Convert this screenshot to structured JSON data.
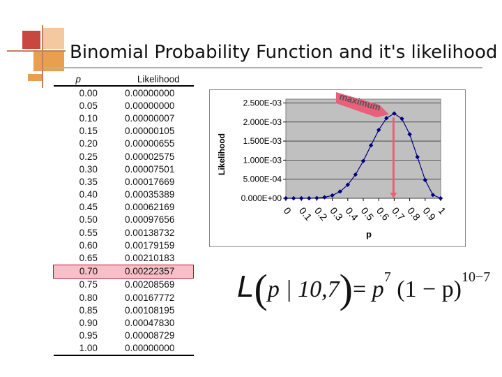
{
  "title": "Binomial Probability Function and it's likelihood",
  "table": {
    "headers": {
      "p": "p",
      "likelihood": "Likelihood"
    },
    "rows": [
      {
        "p": "0.00",
        "l": "0.00000000"
      },
      {
        "p": "0.05",
        "l": "0.00000000"
      },
      {
        "p": "0.10",
        "l": "0.00000007"
      },
      {
        "p": "0.15",
        "l": "0.00000105"
      },
      {
        "p": "0.20",
        "l": "0.00000655"
      },
      {
        "p": "0.25",
        "l": "0.00002575"
      },
      {
        "p": "0.30",
        "l": "0.00007501"
      },
      {
        "p": "0.35",
        "l": "0.00017669"
      },
      {
        "p": "0.40",
        "l": "0.00035389"
      },
      {
        "p": "0.45",
        "l": "0.00062169"
      },
      {
        "p": "0.50",
        "l": "0.00097656"
      },
      {
        "p": "0.55",
        "l": "0.00138732"
      },
      {
        "p": "0.60",
        "l": "0.00179159"
      },
      {
        "p": "0.65",
        "l": "0.00210183"
      },
      {
        "p": "0.70",
        "l": "0.00222357"
      },
      {
        "p": "0.75",
        "l": "0.00208569"
      },
      {
        "p": "0.80",
        "l": "0.00167772"
      },
      {
        "p": "0.85",
        "l": "0.00108195"
      },
      {
        "p": "0.90",
        "l": "0.00047830"
      },
      {
        "p": "0.95",
        "l": "0.00008729"
      },
      {
        "p": "1.00",
        "l": "0.00000000"
      }
    ],
    "highlight_index": 14,
    "highlight_color": "#f6c0c8"
  },
  "chart_data": {
    "type": "line",
    "title": "",
    "xlabel": "p",
    "ylabel": "Likelihood",
    "x": [
      0,
      0.05,
      0.1,
      0.15,
      0.2,
      0.25,
      0.3,
      0.35,
      0.4,
      0.45,
      0.5,
      0.55,
      0.6,
      0.65,
      0.7,
      0.75,
      0.8,
      0.85,
      0.9,
      0.95,
      1
    ],
    "series": [
      {
        "values": [
          0,
          0,
          7e-08,
          1.05e-06,
          6.55e-06,
          2.575e-05,
          7.501e-05,
          0.00017669,
          0.00035389,
          0.00062169,
          0.00097656,
          0.00138732,
          0.00179159,
          0.00210183,
          0.00222357,
          0.00208569,
          0.00167772,
          0.00108195,
          0.0004783,
          8.729e-05,
          0
        ],
        "color": "#000080"
      }
    ],
    "x_tick_labels": [
      "0",
      "0.1",
      "0.2",
      "0.3",
      "0.4",
      "0.5",
      "0.6",
      "0.7",
      "0.8",
      "0.9",
      "1"
    ],
    "x_tick_values": [
      0,
      0.1,
      0.2,
      0.3,
      0.4,
      0.5,
      0.6,
      0.7,
      0.8,
      0.9,
      1
    ],
    "y_tick_labels": [
      "0.000E+00",
      "5.000E-04",
      "1.000E-03",
      "1.500E-03",
      "2.000E-03",
      "2.500E-03"
    ],
    "y_tick_values": [
      0,
      0.0005,
      0.001,
      0.0015,
      0.002,
      0.0025
    ],
    "ylim": [
      0,
      0.0026
    ],
    "xlim": [
      0,
      1
    ],
    "grid": true,
    "plot_background": "#c0c0c0",
    "annotation": {
      "text": "maximum",
      "x": 0.7,
      "color": "#e8607a"
    }
  },
  "formula": {
    "lhs": "L",
    "args": "p | 10,7",
    "rhs_base1": "p",
    "rhs_exp1": "7",
    "rhs_base2": "(1 − p)",
    "rhs_exp2": "10−7"
  }
}
